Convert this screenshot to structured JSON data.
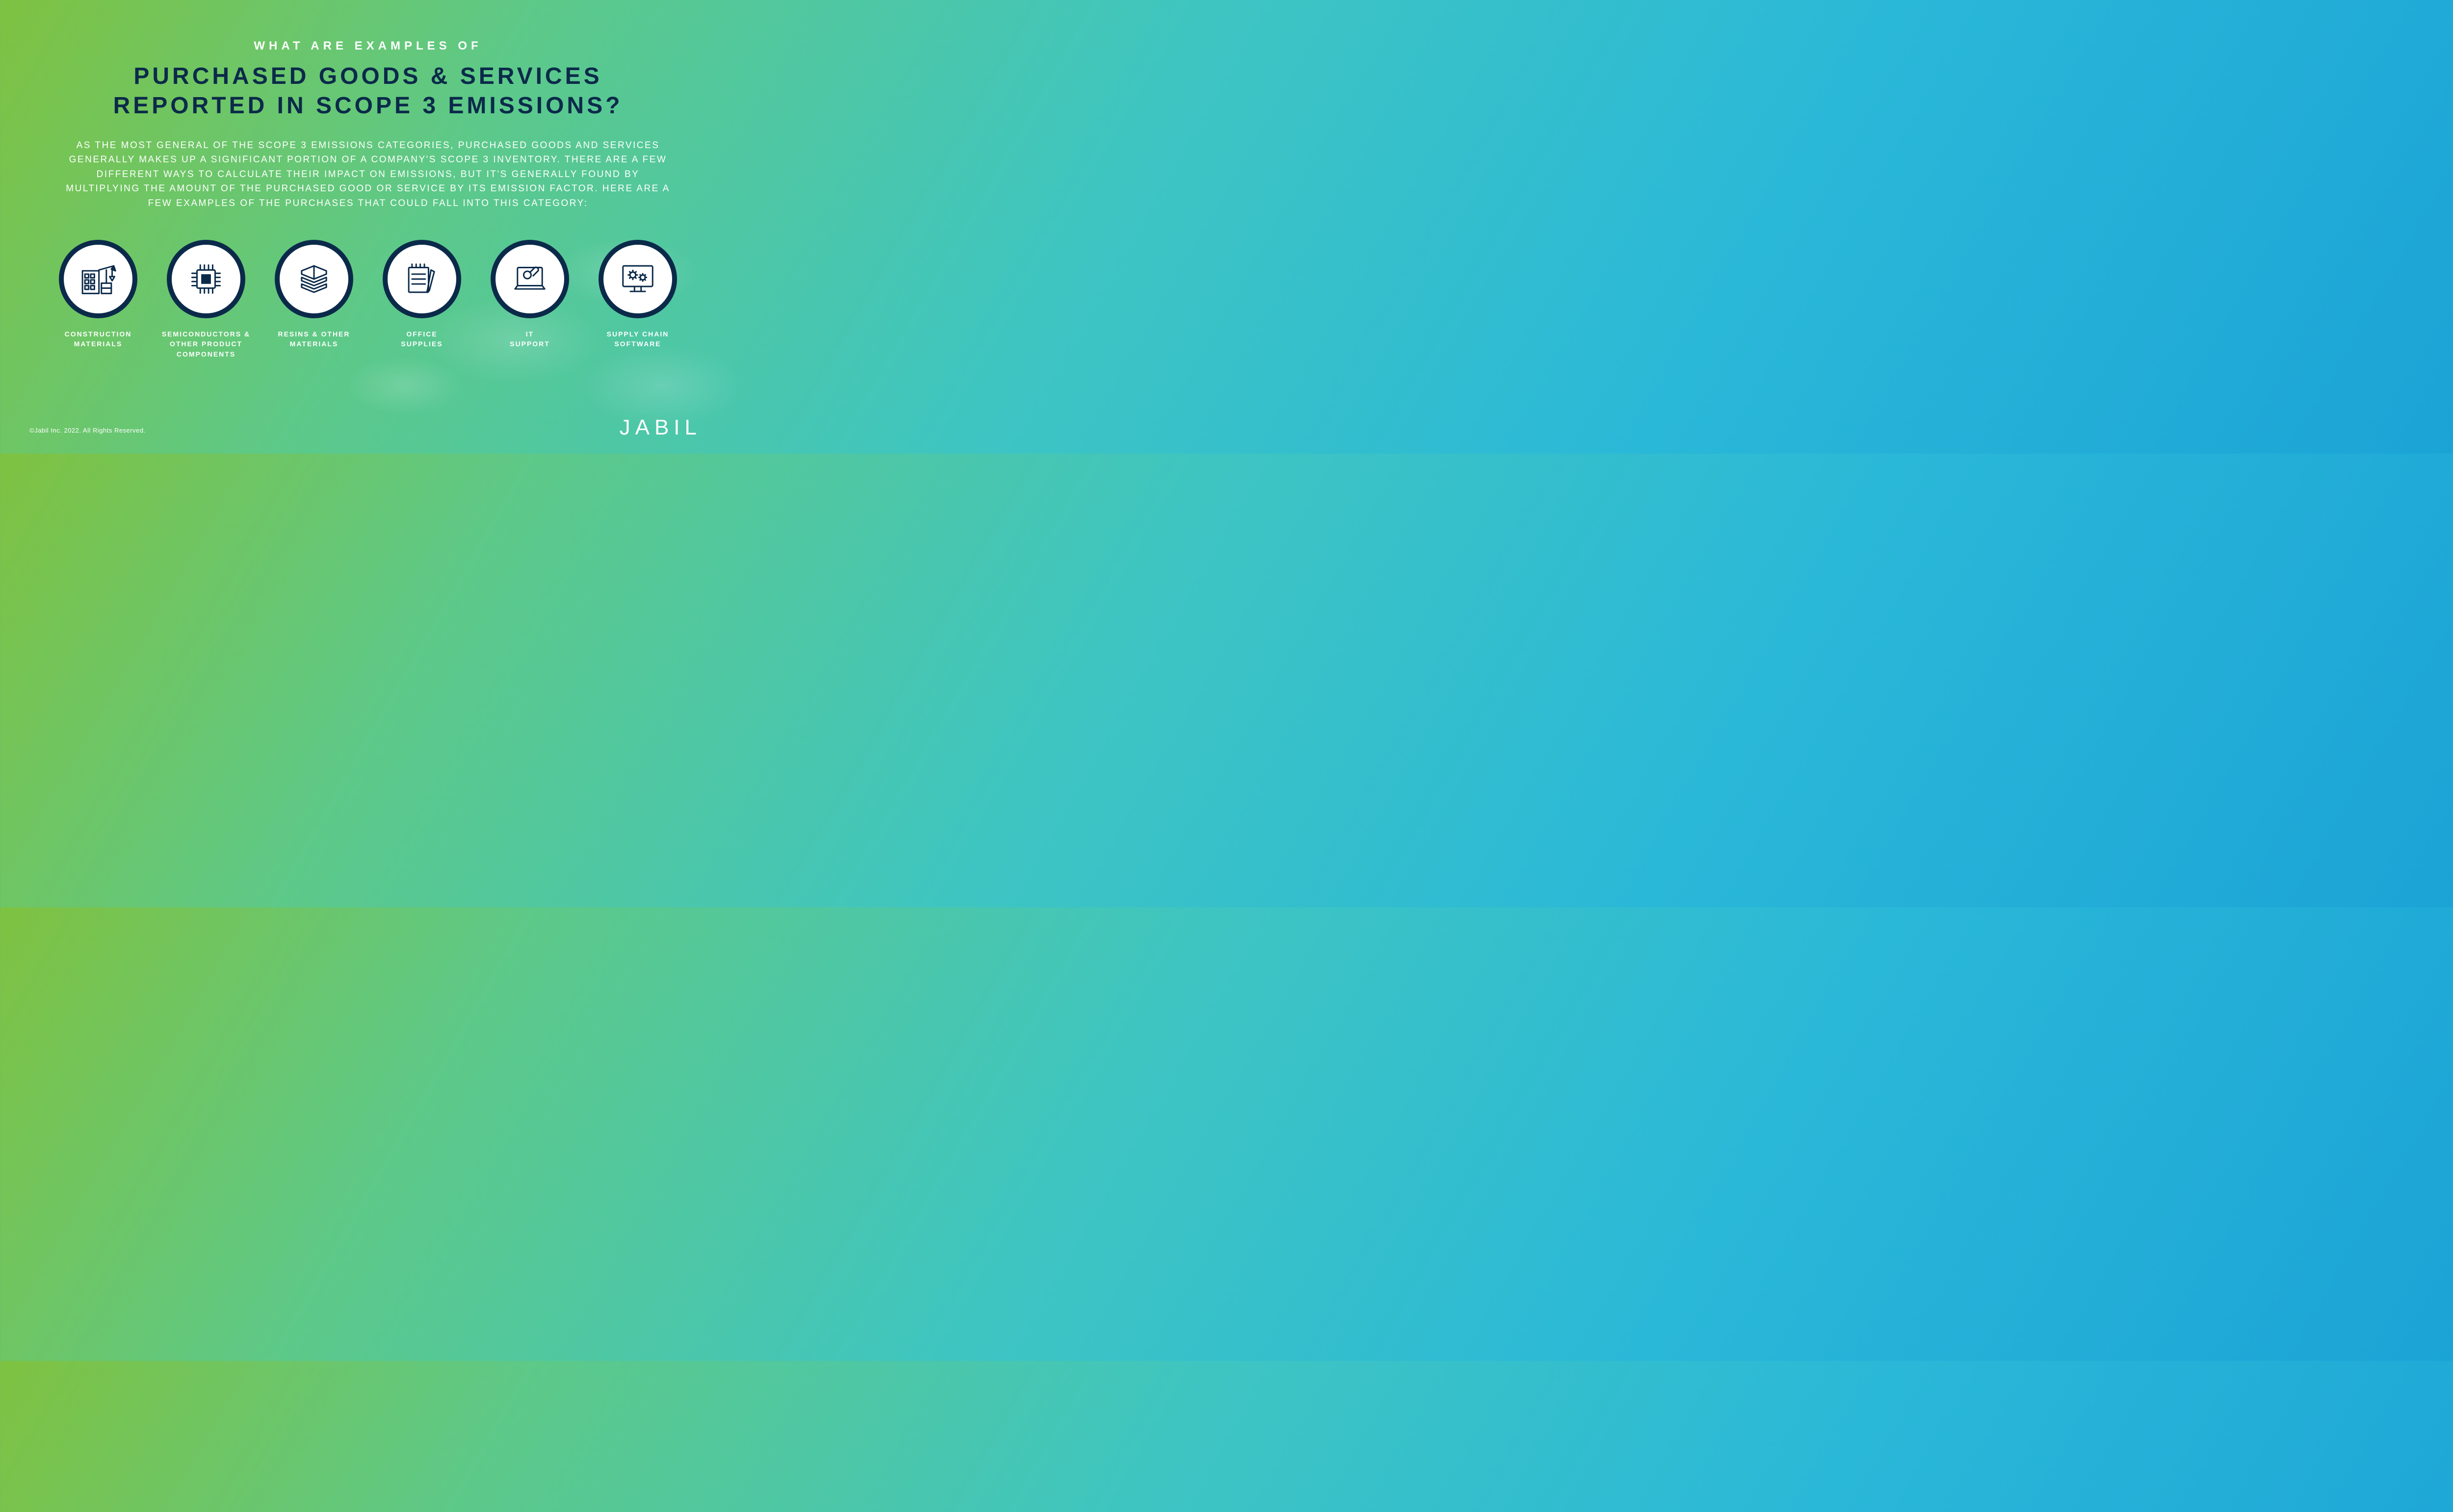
{
  "type": "infographic",
  "background_gradient": [
    "#7fc241",
    "#5dc989",
    "#3ec5c2",
    "#2ab8d8",
    "#1ba3d6"
  ],
  "eyebrow": "WHAT ARE EXAMPLES OF",
  "title_line1": "PURCHASED GOODS & SERVICES",
  "title_line2": "REPORTED IN SCOPE 3 EMISSIONS?",
  "body": "AS THE MOST GENERAL OF THE SCOPE 3 EMISSIONS CATEGORIES, PURCHASED GOODS AND SERVICES GENERALLY MAKES UP A SIGNIFICANT PORTION OF A COMPANY'S SCOPE 3 INVENTORY. THERE ARE A FEW DIFFERENT WAYS TO CALCULATE THEIR IMPACT ON EMISSIONS, BUT IT'S GENERALLY FOUND BY MULTIPLYING THE AMOUNT OF THE PURCHASED GOOD OR SERVICE BY ITS EMISSION FACTOR. HERE ARE A FEW EXAMPLES OF THE PURCHASES THAT COULD FALL INTO THIS CATEGORY:",
  "icons": [
    {
      "id": "construction",
      "label": "CONSTRUCTION\nMATERIALS"
    },
    {
      "id": "semiconductors",
      "label": "SEMICONDUCTORS &\nOTHER PRODUCT\nCOMPONENTS"
    },
    {
      "id": "resins",
      "label": "RESINS & OTHER\nMATERIALS"
    },
    {
      "id": "office",
      "label": "OFFICE\nSUPPLIES"
    },
    {
      "id": "it",
      "label": "IT\nSUPPORT"
    },
    {
      "id": "supplychain",
      "label": "SUPPLY CHAIN\nSOFTWARE"
    }
  ],
  "circle_fill": "#ffffff",
  "circle_border": "#0b2a4a",
  "circle_border_width": 10,
  "icon_stroke": "#0b2a4a",
  "title_color": "#0b2a4a",
  "text_color": "#ffffff",
  "title_fontsize": 48,
  "eyebrow_fontsize": 24,
  "body_fontsize": 19,
  "label_fontsize": 14,
  "copyright": "©Jabil Inc. 2022. All Rights Reserved.",
  "logo_text": "JABIL"
}
